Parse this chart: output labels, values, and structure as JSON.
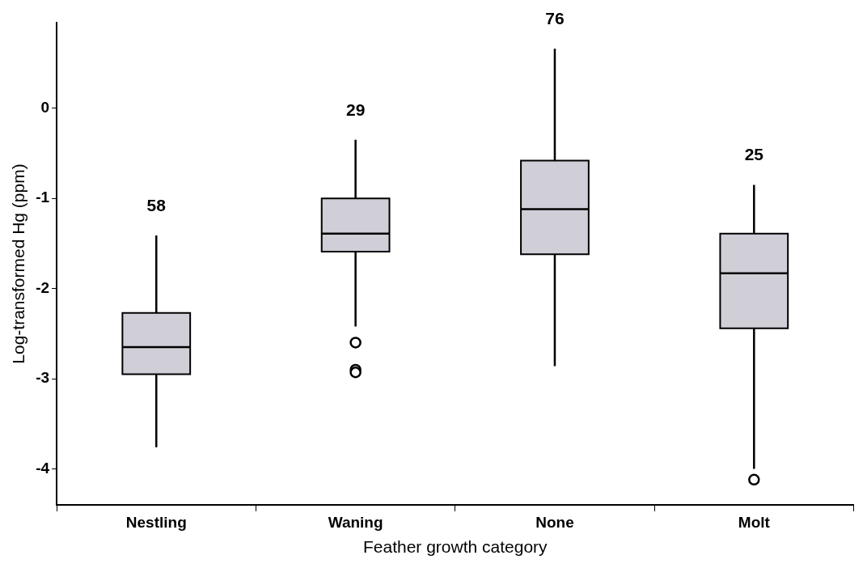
{
  "chart_data": {
    "type": "box",
    "xlabel": "Feather growth category",
    "ylabel": "Log-transformed Hg (ppm)",
    "categories": [
      "Nestling",
      "Waning",
      "None",
      "Molt"
    ],
    "boxes": [
      {
        "low": -3.76,
        "q1": -2.95,
        "median": -2.65,
        "q3": -2.27,
        "high": -1.41
      },
      {
        "low": -2.42,
        "q1": -1.59,
        "median": -1.39,
        "q3": -1.0,
        "high": -0.35,
        "outliers": [
          -2.6,
          -2.9,
          -2.93
        ]
      },
      {
        "low": -2.86,
        "q1": -1.62,
        "median": -1.12,
        "q3": -0.58,
        "high": 0.66
      },
      {
        "low": -4.0,
        "q1": -2.44,
        "median": -1.83,
        "q3": -1.39,
        "high": -0.85,
        "outliers": [
          -4.12
        ]
      }
    ],
    "color": "#d0cfd8",
    "annotations": [
      {
        "text": "58",
        "x": "Nestling",
        "y": -1.41
      },
      {
        "text": "29",
        "x": "Waning",
        "y": -0.35
      },
      {
        "text": "76",
        "x": "None",
        "y": 0.66
      },
      {
        "text": "25",
        "x": "Molt",
        "y": -0.85
      }
    ],
    "ylim": [
      -4.4,
      0.95
    ],
    "yticks": [
      -4,
      -3,
      -2,
      -1,
      0
    ],
    "grid": false,
    "legend": false
  }
}
